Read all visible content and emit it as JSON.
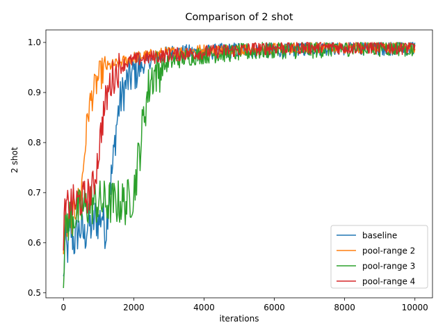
{
  "chart_data": {
    "type": "line",
    "title": "Comparison of 2 shot",
    "xlabel": "iterations",
    "ylabel": "2 shot",
    "xlim": [
      -500,
      10500
    ],
    "ylim": [
      0.49,
      1.025
    ],
    "xticks": [
      0,
      2000,
      4000,
      6000,
      8000,
      10000
    ],
    "xtick_labels": [
      "0",
      "2000",
      "4000",
      "6000",
      "8000",
      "10000"
    ],
    "yticks": [
      0.5,
      0.6,
      0.7,
      0.8,
      0.9,
      1.0
    ],
    "ytick_labels": [
      "0.5",
      "0.6",
      "0.7",
      "0.8",
      "0.9",
      "1.0"
    ],
    "grid": false,
    "legend_position": "lower-right",
    "series": [
      {
        "name": "baseline",
        "color": "#1f77b4",
        "points": [
          [
            0,
            0.52
          ],
          [
            50,
            0.61
          ],
          [
            100,
            0.58
          ],
          [
            150,
            0.6
          ],
          [
            200,
            0.63
          ],
          [
            300,
            0.6
          ],
          [
            400,
            0.62
          ],
          [
            500,
            0.63
          ],
          [
            600,
            0.61
          ],
          [
            700,
            0.64
          ],
          [
            800,
            0.63
          ],
          [
            900,
            0.65
          ],
          [
            1000,
            0.64
          ],
          [
            1100,
            0.66
          ],
          [
            1200,
            0.62
          ],
          [
            1300,
            0.7
          ],
          [
            1400,
            0.75
          ],
          [
            1500,
            0.83
          ],
          [
            1600,
            0.88
          ],
          [
            1700,
            0.9
          ],
          [
            1800,
            0.92
          ],
          [
            1900,
            0.93
          ],
          [
            2000,
            0.94
          ],
          [
            2200,
            0.95
          ],
          [
            2400,
            0.96
          ],
          [
            2600,
            0.97
          ],
          [
            2800,
            0.97
          ],
          [
            3000,
            0.98
          ],
          [
            3500,
            0.98
          ],
          [
            4000,
            0.98
          ],
          [
            5000,
            0.985
          ],
          [
            6000,
            0.985
          ],
          [
            7000,
            0.99
          ],
          [
            8000,
            0.99
          ],
          [
            9000,
            0.99
          ],
          [
            10000,
            0.99
          ]
        ],
        "noise": 0.016
      },
      {
        "name": "pool-range 2",
        "color": "#ff7f0e",
        "points": [
          [
            0,
            0.6
          ],
          [
            50,
            0.64
          ],
          [
            100,
            0.63
          ],
          [
            200,
            0.64
          ],
          [
            300,
            0.66
          ],
          [
            400,
            0.68
          ],
          [
            500,
            0.7
          ],
          [
            600,
            0.78
          ],
          [
            700,
            0.86
          ],
          [
            800,
            0.89
          ],
          [
            900,
            0.91
          ],
          [
            1000,
            0.93
          ],
          [
            1100,
            0.94
          ],
          [
            1200,
            0.95
          ],
          [
            1400,
            0.955
          ],
          [
            1600,
            0.96
          ],
          [
            1800,
            0.965
          ],
          [
            2000,
            0.97
          ],
          [
            2500,
            0.975
          ],
          [
            3000,
            0.98
          ],
          [
            4000,
            0.985
          ],
          [
            5000,
            0.985
          ],
          [
            6000,
            0.988
          ],
          [
            7000,
            0.99
          ],
          [
            8000,
            0.99
          ],
          [
            9000,
            0.99
          ],
          [
            10000,
            0.99
          ]
        ],
        "noise": 0.012
      },
      {
        "name": "pool-range 3",
        "color": "#2ca02c",
        "points": [
          [
            0,
            0.55
          ],
          [
            50,
            0.62
          ],
          [
            100,
            0.64
          ],
          [
            200,
            0.65
          ],
          [
            400,
            0.66
          ],
          [
            600,
            0.67
          ],
          [
            800,
            0.68
          ],
          [
            1000,
            0.68
          ],
          [
            1200,
            0.68
          ],
          [
            1400,
            0.68
          ],
          [
            1600,
            0.68
          ],
          [
            1800,
            0.68
          ],
          [
            2000,
            0.7
          ],
          [
            2100,
            0.75
          ],
          [
            2200,
            0.8
          ],
          [
            2300,
            0.86
          ],
          [
            2400,
            0.9
          ],
          [
            2500,
            0.93
          ],
          [
            2600,
            0.94
          ],
          [
            2800,
            0.95
          ],
          [
            3000,
            0.96
          ],
          [
            3500,
            0.97
          ],
          [
            4000,
            0.975
          ],
          [
            5000,
            0.98
          ],
          [
            6000,
            0.985
          ],
          [
            7000,
            0.985
          ],
          [
            8000,
            0.99
          ],
          [
            9000,
            0.99
          ],
          [
            10000,
            0.99
          ]
        ],
        "noise": 0.018
      },
      {
        "name": "pool-range 4",
        "color": "#d62728",
        "points": [
          [
            0,
            0.62
          ],
          [
            50,
            0.66
          ],
          [
            100,
            0.67
          ],
          [
            200,
            0.68
          ],
          [
            400,
            0.68
          ],
          [
            600,
            0.69
          ],
          [
            800,
            0.7
          ],
          [
            900,
            0.73
          ],
          [
            1000,
            0.78
          ],
          [
            1100,
            0.84
          ],
          [
            1200,
            0.88
          ],
          [
            1300,
            0.91
          ],
          [
            1400,
            0.93
          ],
          [
            1600,
            0.95
          ],
          [
            1800,
            0.96
          ],
          [
            2000,
            0.965
          ],
          [
            2500,
            0.97
          ],
          [
            3000,
            0.975
          ],
          [
            4000,
            0.98
          ],
          [
            5000,
            0.985
          ],
          [
            6000,
            0.99
          ],
          [
            7000,
            0.99
          ],
          [
            8000,
            0.99
          ],
          [
            9000,
            0.99
          ],
          [
            10000,
            0.99
          ]
        ],
        "noise": 0.014
      }
    ]
  }
}
